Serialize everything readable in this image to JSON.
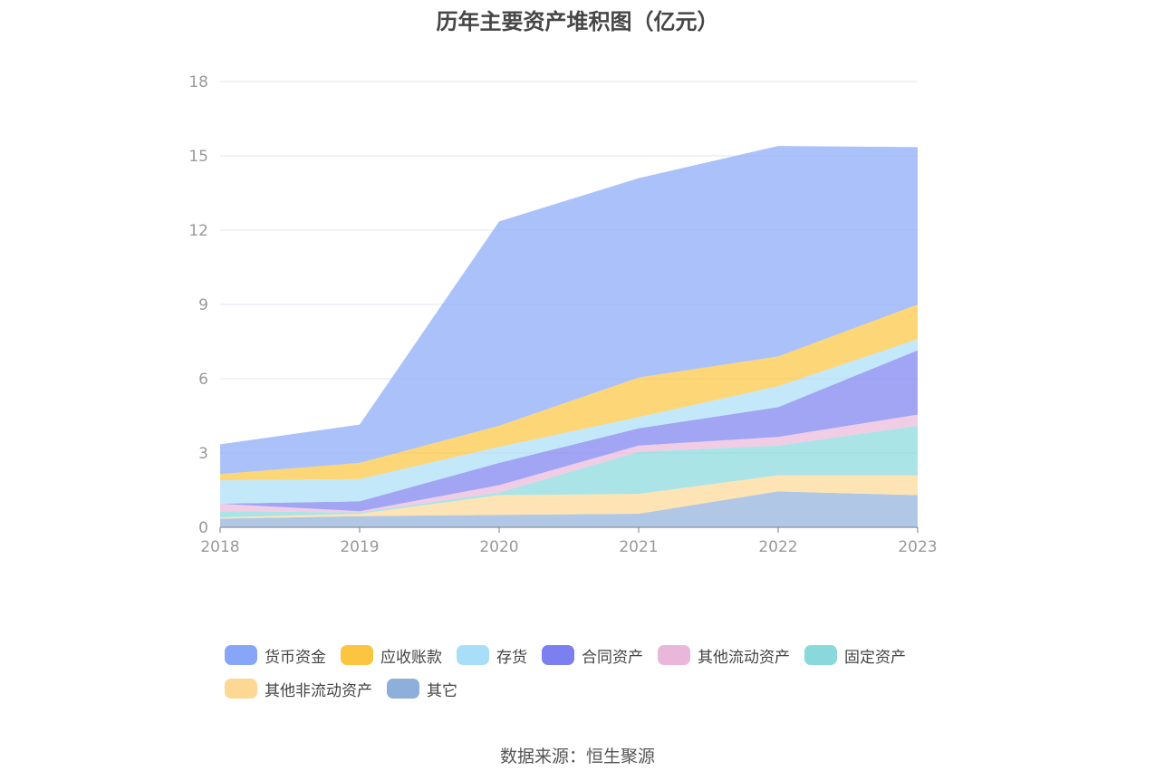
{
  "chart_data": {
    "type": "area",
    "title": "历年主要资产堆积图（亿元）",
    "stacked": true,
    "x": [
      "2018",
      "2019",
      "2020",
      "2021",
      "2022",
      "2023"
    ],
    "ylim": [
      0,
      18
    ],
    "yticks": [
      0,
      3,
      6,
      9,
      12,
      15,
      18
    ],
    "grid": true,
    "legend_position": "bottom",
    "series": [
      {
        "name": "其它",
        "color": "#8fafdb",
        "values": [
          0.35,
          0.45,
          0.5,
          0.55,
          1.45,
          1.3
        ]
      },
      {
        "name": "其他非流动资产",
        "color": "#fdd894",
        "values": [
          0.05,
          0.1,
          0.8,
          0.8,
          0.65,
          0.8
        ]
      },
      {
        "name": "固定资产",
        "color": "#88d8dc",
        "values": [
          0.25,
          0.05,
          0.1,
          1.7,
          1.2,
          2.0
        ]
      },
      {
        "name": "其他流动资产",
        "color": "#e9b7da",
        "values": [
          0.3,
          0.05,
          0.3,
          0.25,
          0.35,
          0.45
        ]
      },
      {
        "name": "合同资产",
        "color": "#7b7ff0",
        "values": [
          0.0,
          0.4,
          0.9,
          0.7,
          1.2,
          2.6
        ]
      },
      {
        "name": "存货",
        "color": "#a9def8",
        "values": [
          0.95,
          0.9,
          0.65,
          0.45,
          0.85,
          0.45
        ]
      },
      {
        "name": "应收账款",
        "color": "#fcc53f",
        "values": [
          0.25,
          0.65,
          0.85,
          1.6,
          1.2,
          1.4
        ]
      },
      {
        "name": "货币资金",
        "color": "#87a6f8",
        "values": [
          1.2,
          1.55,
          8.25,
          8.05,
          8.5,
          6.35
        ]
      }
    ],
    "legend_order": [
      "货币资金",
      "应收账款",
      "存货",
      "合同资产",
      "其他流动资产",
      "固定资产",
      "其他非流动资产",
      "其它"
    ]
  },
  "source": "数据来源：恒生聚源"
}
